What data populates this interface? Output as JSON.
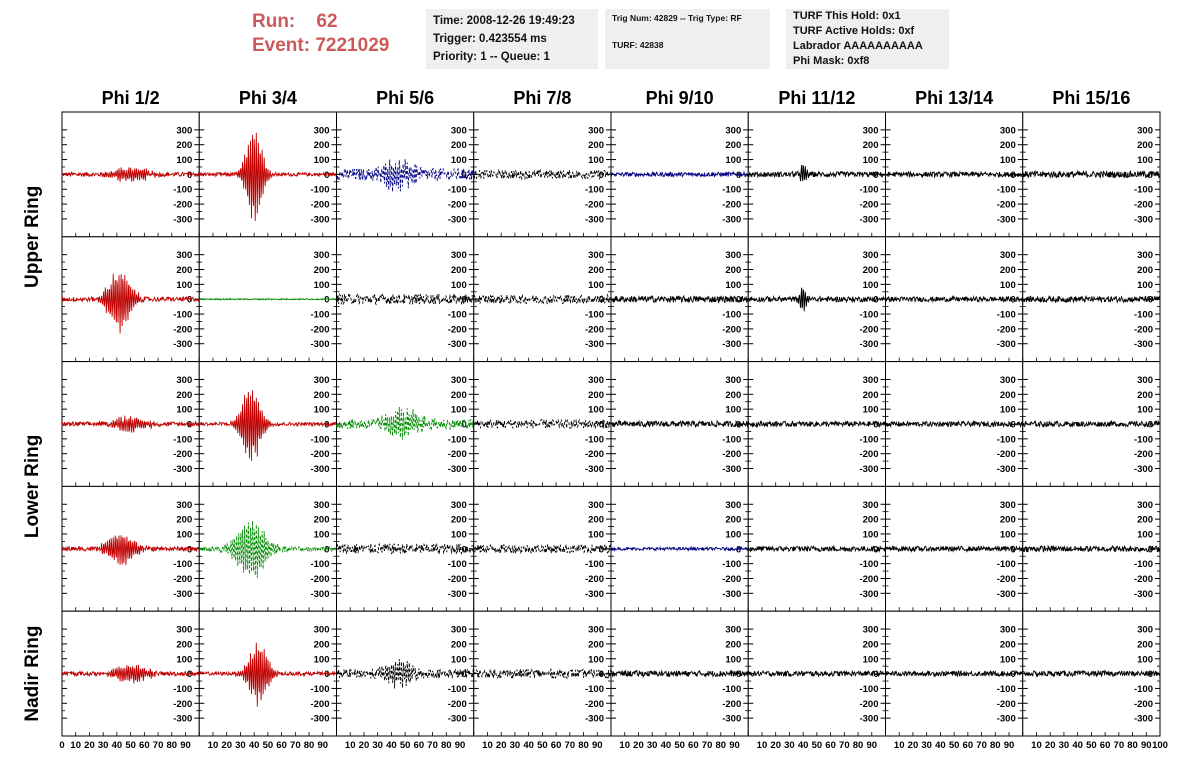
{
  "header": {
    "run_label": "Run:",
    "run_value": "62",
    "event_label": "Event:",
    "event_value": "7221029"
  },
  "info_box_1": {
    "time": "Time: 2008-12-26 19:49:23",
    "trigger": "Trigger: 0.423554 ms",
    "priority": "Priority: 1 -- Queue: 1"
  },
  "info_box_2": {
    "trig": "Trig Num: 42829 -- Trig Type: RF",
    "turf": "TURF: 42838"
  },
  "info_box_3": {
    "hold": "TURF This Hold: 0x1",
    "active": "TURF Active Holds: 0xf",
    "labrador": "Labrador AAAAAAAAAA",
    "phimask": "Phi Mask: 0xf8"
  },
  "chart_data": {
    "type": "line",
    "title": "",
    "column_headers": [
      "Phi 1/2",
      "Phi 3/4",
      "Phi 5/6",
      "Phi 7/8",
      "Phi 9/10",
      "Phi 11/12",
      "Phi 13/14",
      "Phi 15/16"
    ],
    "row_groups": [
      {
        "label": "Upper Ring",
        "rows": [
          0,
          1
        ]
      },
      {
        "label": "Lower Ring",
        "rows": [
          2,
          3
        ]
      },
      {
        "label": "Nadir Ring",
        "rows": [
          4
        ]
      }
    ],
    "xlim": [
      0,
      100
    ],
    "ylim": [
      -380,
      380
    ],
    "x_ticks": [
      0,
      10,
      20,
      30,
      40,
      50,
      60,
      70,
      80,
      90,
      100
    ],
    "x_tick_labels": [
      "0",
      "10",
      "20",
      "30",
      "40",
      "50",
      "60",
      "70",
      "80",
      "90",
      "100"
    ],
    "last_x_tick_label": "100",
    "y_ticks": [
      300,
      200,
      100,
      0,
      -100,
      -200,
      -300
    ],
    "y_tick_labels": [
      "300",
      "200",
      "100",
      "0",
      "-100",
      "-200",
      "-300"
    ],
    "colors": {
      "red": "#c00000",
      "green": "#008a00",
      "blue": "#000080",
      "black": "#000000"
    },
    "panels": [
      [
        {
          "color": "red",
          "dashed": false,
          "noise": 15,
          "pulse": {
            "center": 50,
            "width": 10,
            "amp": 55
          }
        },
        {
          "color": "red",
          "dashed": false,
          "noise": 12,
          "pulse": {
            "center": 40,
            "width": 5,
            "amp": 360
          }
        },
        {
          "color": "blue",
          "dashed": true,
          "noise": 40,
          "pulse": {
            "center": 45,
            "width": 10,
            "amp": 100
          }
        },
        {
          "color": "black",
          "dashed": true,
          "noise": 30,
          "pulse": null
        },
        {
          "color": "blue",
          "dashed": false,
          "noise": 15,
          "pulse": null
        },
        {
          "color": "black",
          "dashed": false,
          "noise": 18,
          "pulse": {
            "center": 40,
            "width": 2,
            "amp": 70
          }
        },
        {
          "color": "black",
          "dashed": false,
          "noise": 17,
          "pulse": null
        },
        {
          "color": "black",
          "dashed": false,
          "noise": 22,
          "pulse": null
        }
      ],
      [
        {
          "color": "red",
          "dashed": false,
          "noise": 15,
          "pulse": {
            "center": 42,
            "width": 7,
            "amp": 230
          }
        },
        {
          "color": "green",
          "dashed": false,
          "noise": 4,
          "pulse": null
        },
        {
          "color": "black",
          "dashed": true,
          "noise": 35,
          "pulse": null
        },
        {
          "color": "black",
          "dashed": true,
          "noise": 30,
          "pulse": null
        },
        {
          "color": "black",
          "dashed": false,
          "noise": 22,
          "pulse": null
        },
        {
          "color": "black",
          "dashed": false,
          "noise": 18,
          "pulse": {
            "center": 40,
            "width": 2,
            "amp": 90
          }
        },
        {
          "color": "black",
          "dashed": false,
          "noise": 17,
          "pulse": null
        },
        {
          "color": "black",
          "dashed": false,
          "noise": 20,
          "pulse": null
        }
      ],
      [
        {
          "color": "red",
          "dashed": false,
          "noise": 15,
          "pulse": {
            "center": 50,
            "width": 10,
            "amp": 55
          }
        },
        {
          "color": "red",
          "dashed": false,
          "noise": 12,
          "pulse": {
            "center": 38,
            "width": 6,
            "amp": 280
          }
        },
        {
          "color": "green",
          "dashed": true,
          "noise": 35,
          "pulse": {
            "center": 48,
            "width": 10,
            "amp": 110
          }
        },
        {
          "color": "black",
          "dashed": true,
          "noise": 30,
          "pulse": null
        },
        {
          "color": "black",
          "dashed": false,
          "noise": 20,
          "pulse": null
        },
        {
          "color": "black",
          "dashed": false,
          "noise": 18,
          "pulse": null
        },
        {
          "color": "black",
          "dashed": false,
          "noise": 17,
          "pulse": null
        },
        {
          "color": "black",
          "dashed": false,
          "noise": 18,
          "pulse": null
        }
      ],
      [
        {
          "color": "red",
          "dashed": false,
          "noise": 15,
          "pulse": {
            "center": 43,
            "width": 8,
            "amp": 120
          }
        },
        {
          "color": "green",
          "dashed": true,
          "noise": 18,
          "pulse": {
            "center": 38,
            "width": 9,
            "amp": 220
          }
        },
        {
          "color": "black",
          "dashed": true,
          "noise": 35,
          "pulse": null
        },
        {
          "color": "black",
          "dashed": true,
          "noise": 30,
          "pulse": null
        },
        {
          "color": "blue",
          "dashed": false,
          "noise": 10,
          "pulse": null
        },
        {
          "color": "black",
          "dashed": false,
          "noise": 18,
          "pulse": null
        },
        {
          "color": "black",
          "dashed": false,
          "noise": 17,
          "pulse": null
        },
        {
          "color": "black",
          "dashed": false,
          "noise": 20,
          "pulse": null
        }
      ],
      [
        {
          "color": "red",
          "dashed": false,
          "noise": 15,
          "pulse": {
            "center": 50,
            "width": 10,
            "amp": 70
          }
        },
        {
          "color": "red",
          "dashed": false,
          "noise": 12,
          "pulse": {
            "center": 43,
            "width": 6,
            "amp": 230
          }
        },
        {
          "color": "black",
          "dashed": true,
          "noise": 30,
          "pulse": {
            "center": 45,
            "width": 8,
            "amp": 100
          }
        },
        {
          "color": "black",
          "dashed": true,
          "noise": 30,
          "pulse": null
        },
        {
          "color": "black",
          "dashed": false,
          "noise": 20,
          "pulse": null
        },
        {
          "color": "black",
          "dashed": false,
          "noise": 18,
          "pulse": null
        },
        {
          "color": "black",
          "dashed": false,
          "noise": 17,
          "pulse": null
        },
        {
          "color": "black",
          "dashed": false,
          "noise": 18,
          "pulse": null
        }
      ]
    ]
  }
}
